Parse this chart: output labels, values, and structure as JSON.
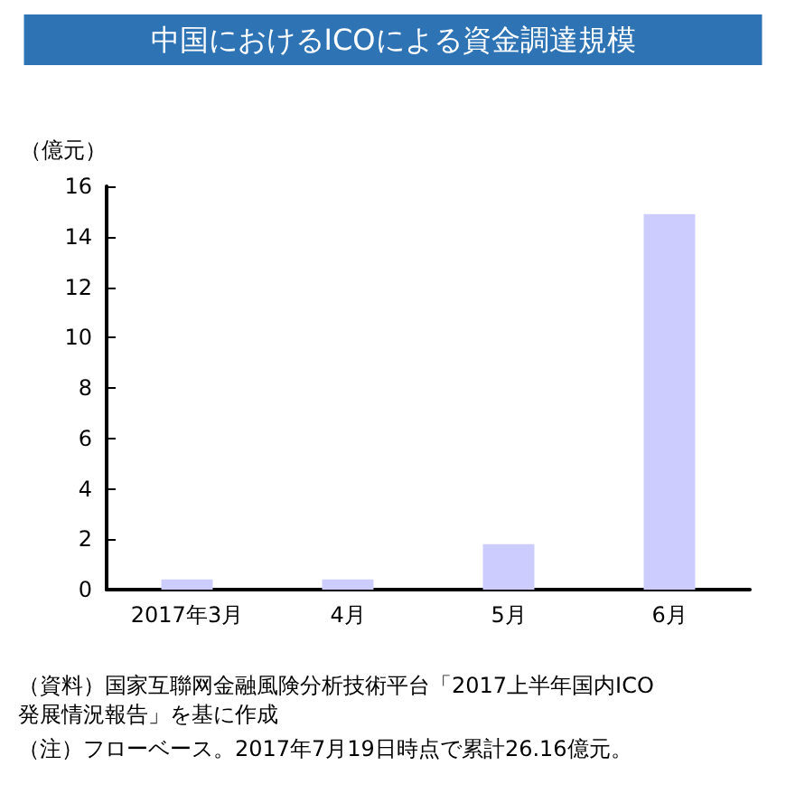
{
  "chart_data": {
    "type": "bar",
    "title": "中国におけるICOによる資金調達規模",
    "ylabel": "（億元）",
    "categories": [
      "2017年3月",
      "4月",
      "5月",
      "6月"
    ],
    "values": [
      0.4,
      0.4,
      1.8,
      14.9
    ],
    "color": "#ccccff",
    "ylim": [
      0,
      16
    ],
    "yticks": [
      0,
      2,
      4,
      6,
      8,
      10,
      12,
      14,
      16
    ],
    "grid": false,
    "annotations": [
      "（資料）国家互聯网金融風険分析技術平台「2017上半年国内ICO発展情況報告」を基に作成",
      "（注）フローベース。2017年7月19日時点で累計26.16億元。"
    ]
  }
}
